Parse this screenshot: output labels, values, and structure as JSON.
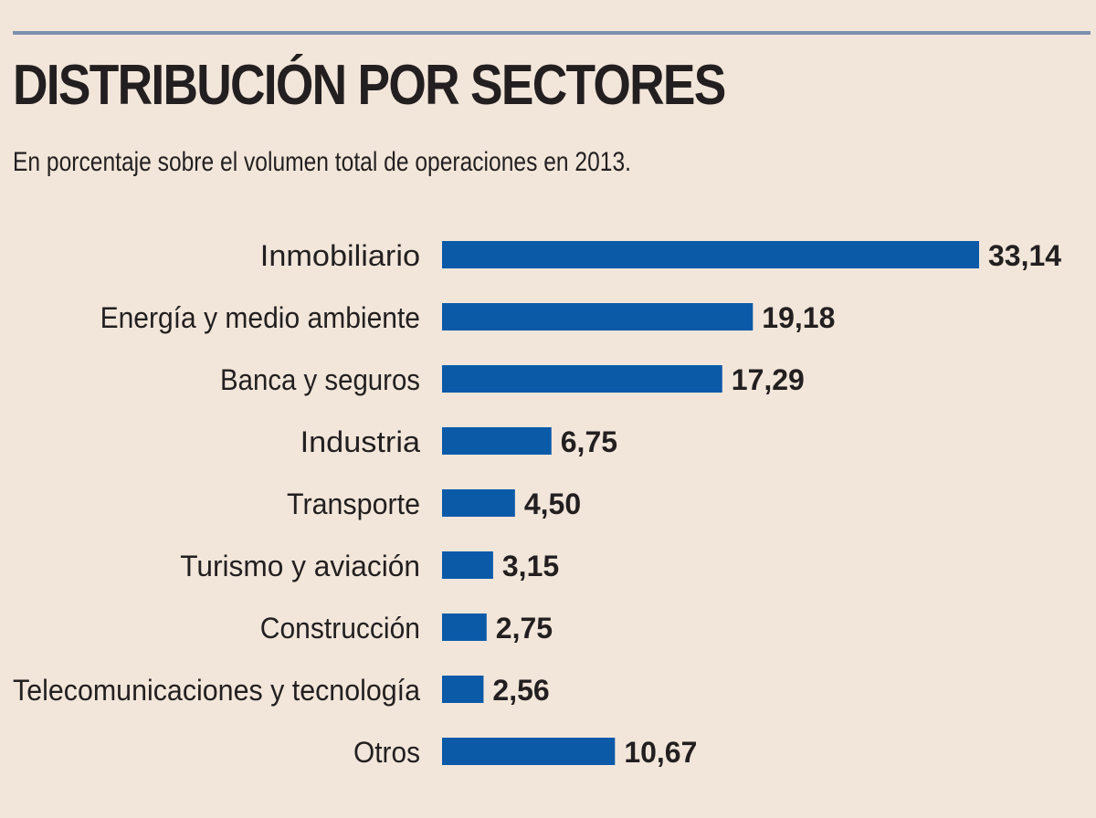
{
  "chart_data": {
    "type": "bar",
    "orientation": "horizontal",
    "title": "DISTRIBUCIÓN POR SECTORES",
    "subtitle": "En porcentaje sobre el volumen total de operaciones en 2013.",
    "categories": [
      "Inmobiliario",
      "Energía y medio ambiente",
      "Banca y seguros",
      "Industria",
      "Transporte",
      "Turismo y aviación",
      "Construcción",
      "Telecomunicaciones y tecnología",
      "Otros"
    ],
    "values": [
      33.14,
      19.18,
      17.29,
      6.75,
      4.5,
      3.15,
      2.75,
      2.56,
      10.67
    ],
    "value_labels": [
      "33,14",
      "19,18",
      "17,29",
      "6,75",
      "4,50",
      "3,15",
      "2,75",
      "2,56",
      "10,67"
    ],
    "xlim": [
      0,
      33.14
    ],
    "grid": false,
    "legend": "none",
    "colors": {
      "bar": "#0b5aa8",
      "background": "#f2e6da",
      "rule": "#7d8fb0",
      "text": "#231f20"
    }
  }
}
